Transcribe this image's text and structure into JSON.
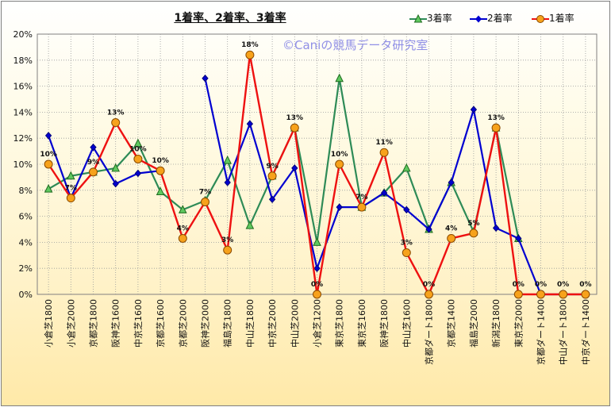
{
  "chart_data": {
    "type": "line",
    "title": "1着率、2着率、3着率",
    "watermark": "©Caniの競馬データ研究室",
    "categories": [
      "小倉芝1800",
      "小倉芝2000",
      "京都芝1800",
      "阪神芝1600",
      "中京芝1600",
      "京都芝1600",
      "京都芝2000",
      "阪神芝2000",
      "福島芝1800",
      "中山芝1800",
      "中京芝2000",
      "中山芝2000",
      "小倉芝1200",
      "東京芝1800",
      "東京芝1600",
      "阪神芝1800",
      "中山芝1600",
      "京都ダート1800",
      "京都芝1400",
      "福島芝2000",
      "新潟芝1800",
      "東京芝2000",
      "京都ダート1400",
      "中山ダート1800",
      "中京ダート1400"
    ],
    "ylim": [
      0,
      20
    ],
    "yticks": [
      "0%",
      "2%",
      "4%",
      "6%",
      "8%",
      "10%",
      "12%",
      "14%",
      "16%",
      "18%",
      "20%"
    ],
    "grid": "vertical and horizontal, dotted",
    "legend_position": "top-right",
    "series": [
      {
        "name": "3着率",
        "color": "#2e8b57",
        "marker": "triangle",
        "values": [
          8.1,
          9.1,
          9.4,
          9.7,
          11.6,
          7.9,
          6.5,
          7.2,
          10.3,
          5.3,
          9.1,
          12.8,
          4.0,
          16.6,
          6.7,
          7.8,
          9.7,
          5.0,
          8.6,
          4.8,
          12.8,
          4.3,
          null,
          null,
          null
        ]
      },
      {
        "name": "2着率",
        "color": "#0000d0",
        "marker": "diamond",
        "values": [
          12.2,
          7.4,
          11.3,
          8.5,
          9.3,
          9.5,
          null,
          16.6,
          8.6,
          13.1,
          7.3,
          9.7,
          2.0,
          6.7,
          6.7,
          7.8,
          6.5,
          5.0,
          8.6,
          14.2,
          5.1,
          4.3,
          0,
          0,
          0
        ]
      },
      {
        "name": "1着率",
        "color": "#ee1111",
        "marker": "circle",
        "values": [
          10.0,
          7.4,
          9.4,
          13.2,
          10.4,
          9.5,
          4.3,
          7.1,
          3.4,
          18.4,
          9.1,
          12.8,
          0,
          10.0,
          6.7,
          10.9,
          3.2,
          0,
          4.3,
          4.7,
          12.8,
          0,
          0,
          0,
          0
        ],
        "data_labels": [
          "10%",
          "7%",
          "9%",
          "13%",
          "10%",
          "10%",
          "4%",
          "7%",
          "3%",
          "18%",
          "9%",
          "13%",
          "0%",
          "10%",
          "7%",
          "11%",
          "3%",
          "0%",
          "4%",
          "5%",
          "13%",
          "0%",
          "0%",
          "0%",
          "0%"
        ]
      }
    ]
  }
}
